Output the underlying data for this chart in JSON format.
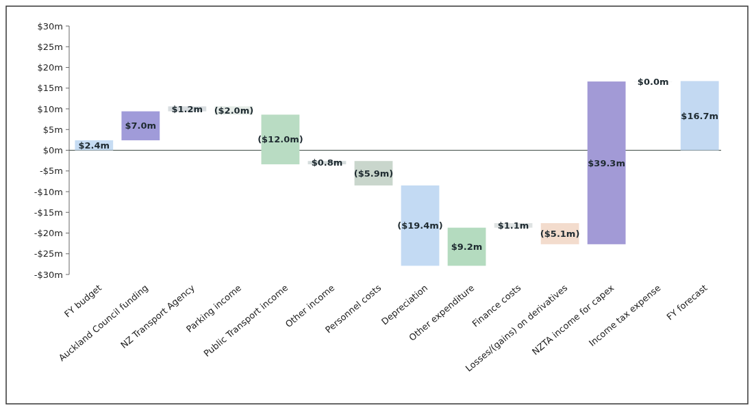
{
  "chart_data": {
    "type": "bar",
    "categories": [
      "FY budget",
      "Auckland Council funding",
      "NZ Transport Agency",
      "Parking income",
      "Public Transport income",
      "Other income",
      "Personnel costs",
      "Depreciation",
      "Other expenditure",
      "Finance costs",
      "Losses/(gains) on derivatives",
      "NZTA income for capex",
      "Income tax expense",
      "FY forecast"
    ],
    "values": [
      2.4,
      7.0,
      1.2,
      -2.0,
      -12.0,
      0.8,
      -5.9,
      -19.4,
      9.2,
      1.1,
      -5.1,
      39.3,
      0.0,
      16.7
    ],
    "base": [
      0,
      2.4,
      9.4,
      10.6,
      8.6,
      -3.4,
      -2.6,
      -8.5,
      -27.9,
      -18.7,
      -17.6,
      -22.7,
      16.6,
      0
    ],
    "value_labels": [
      "$2.4m",
      "$7.0m",
      "$1.2m",
      "($2.0m)",
      "($12.0m)",
      "$0.8m",
      "($5.9m)",
      "($19.4m)",
      "$9.2m",
      "$1.1m",
      "($5.1m)",
      "$39.3m",
      "$0.0m",
      "$16.7m"
    ],
    "colors": [
      "#c6dcf3",
      "#a09bd9",
      "#d8dde0",
      "#e6ece8",
      "#b9dcc3",
      "#d5dcdc",
      "#c9d6cc",
      "#c3daf3",
      "#b4dbbf",
      "#dfe3e3",
      "#f3dccd",
      "#a29ad6",
      "#e8eced",
      "#c3d9f2"
    ],
    "ylim": [
      -30,
      30
    ],
    "yticks": [
      {
        "value": -30,
        "label": "-$30m"
      },
      {
        "value": -25,
        "label": "-$25m"
      },
      {
        "value": -20,
        "label": "-$20m"
      },
      {
        "value": -15,
        "label": "-$15m"
      },
      {
        "value": -10,
        "label": "-$10m"
      },
      {
        "value": -5,
        "label": "-$5m"
      },
      {
        "value": 0,
        "label": "$0m"
      },
      {
        "value": 5,
        "label": "$5m"
      },
      {
        "value": 10,
        "label": "$10m"
      },
      {
        "value": 15,
        "label": "$15m"
      },
      {
        "value": 20,
        "label": "$20m"
      },
      {
        "value": 25,
        "label": "$25m"
      },
      {
        "value": 30,
        "label": "$30m"
      }
    ],
    "ref_lines": [
      {
        "axis": "y",
        "value": 0,
        "color": "#3c4a44"
      }
    ]
  }
}
